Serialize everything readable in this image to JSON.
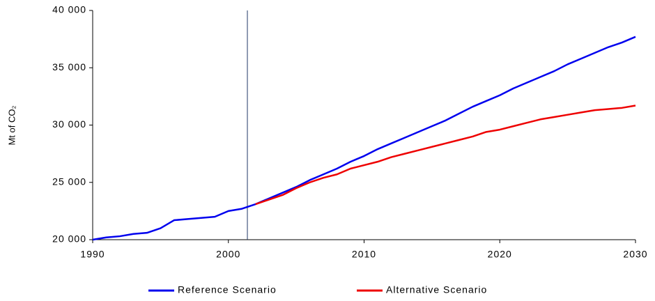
{
  "chart_data": {
    "type": "line",
    "y_label": "Mt of CO₂",
    "x": [
      1990,
      1991,
      1992,
      1993,
      1994,
      1995,
      1996,
      1997,
      1998,
      1999,
      2000,
      2001,
      2002,
      2003,
      2004,
      2005,
      2006,
      2007,
      2008,
      2009,
      2010,
      2011,
      2012,
      2013,
      2014,
      2015,
      2016,
      2017,
      2018,
      2019,
      2020,
      2021,
      2022,
      2023,
      2024,
      2025,
      2026,
      2027,
      2028,
      2029,
      2030
    ],
    "series": [
      {
        "name": "Reference Scenario",
        "color": "#0000ee",
        "values": [
          20000,
          20200,
          20300,
          20500,
          20600,
          21000,
          21700,
          21800,
          21900,
          22000,
          22500,
          22700,
          23100,
          23600,
          24100,
          24600,
          25200,
          25700,
          26200,
          26800,
          27300,
          27900,
          28400,
          28900,
          29400,
          29900,
          30400,
          31000,
          31600,
          32100,
          32600,
          33200,
          33700,
          34200,
          34700,
          35300,
          35800,
          36300,
          36800,
          37200,
          37700
        ]
      },
      {
        "name": "Alternative Scenario",
        "color": "#ee0000",
        "values": [
          null,
          null,
          null,
          null,
          null,
          null,
          null,
          null,
          null,
          null,
          null,
          null,
          23100,
          23500,
          23900,
          24500,
          25000,
          25400,
          25700,
          26200,
          26500,
          26800,
          27200,
          27500,
          27800,
          28100,
          28400,
          28700,
          29000,
          29400,
          29600,
          29900,
          30200,
          30500,
          30700,
          30900,
          31100,
          31300,
          31400,
          31500,
          31700
        ]
      }
    ],
    "vline_x": 2001.4,
    "xlim": [
      1990,
      2030
    ],
    "xticks": [
      1990,
      2000,
      2010,
      2020,
      2030
    ],
    "ylim": [
      20000,
      40000
    ],
    "yticks": [
      {
        "value": 20000,
        "label": "20 000"
      },
      {
        "value": 25000,
        "label": "25 000"
      },
      {
        "value": 30000,
        "label": "30 000"
      },
      {
        "value": 35000,
        "label": "35 000"
      },
      {
        "value": 40000,
        "label": "40 000"
      }
    ],
    "legend": "bottom"
  }
}
